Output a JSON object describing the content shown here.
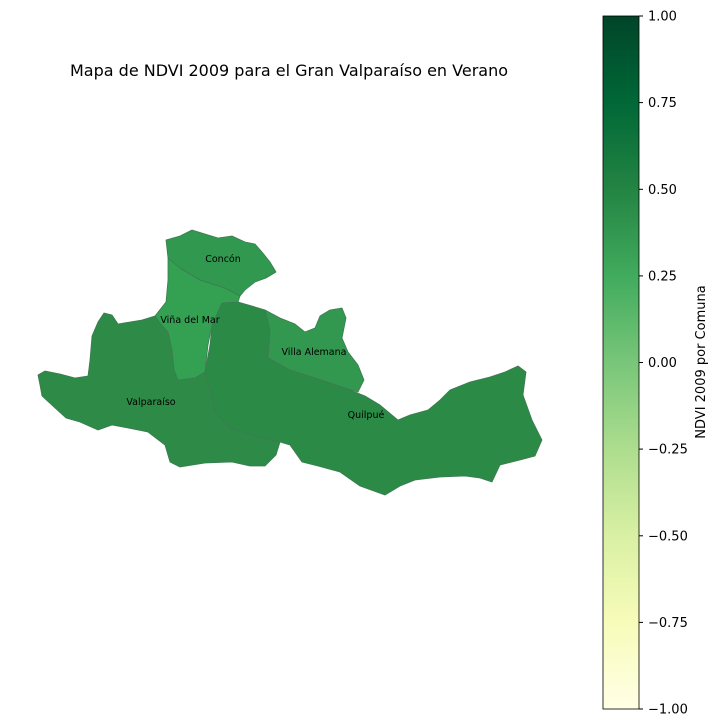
{
  "figure": {
    "title": "Mapa de NDVI 2009 para el Gran Valparaíso en Verano"
  },
  "colorbar": {
    "label": "NDVI 2009 por Comuna",
    "colormap": "YlGn",
    "range": [
      -1.0,
      1.0
    ],
    "ticks": [
      "1.00",
      "0.75",
      "0.50",
      "0.25",
      "0.00",
      "−0.25",
      "−0.50",
      "−0.75",
      "−1.00"
    ],
    "stops": [
      "#ffffe5",
      "#f7fcb9",
      "#d9f0a3",
      "#addd8e",
      "#78c679",
      "#41ab5d",
      "#238443",
      "#006837",
      "#004529"
    ]
  },
  "map": {
    "regions": [
      {
        "name": "Concón",
        "color": "#31994f"
      },
      {
        "name": "Viña del Mar",
        "color": "#34a052"
      },
      {
        "name": "Villa Alemana",
        "color": "#32984f"
      },
      {
        "name": "Valparaíso",
        "color": "#2d8b47"
      },
      {
        "name": "Quilpué",
        "color": "#2b8a46"
      }
    ]
  }
}
